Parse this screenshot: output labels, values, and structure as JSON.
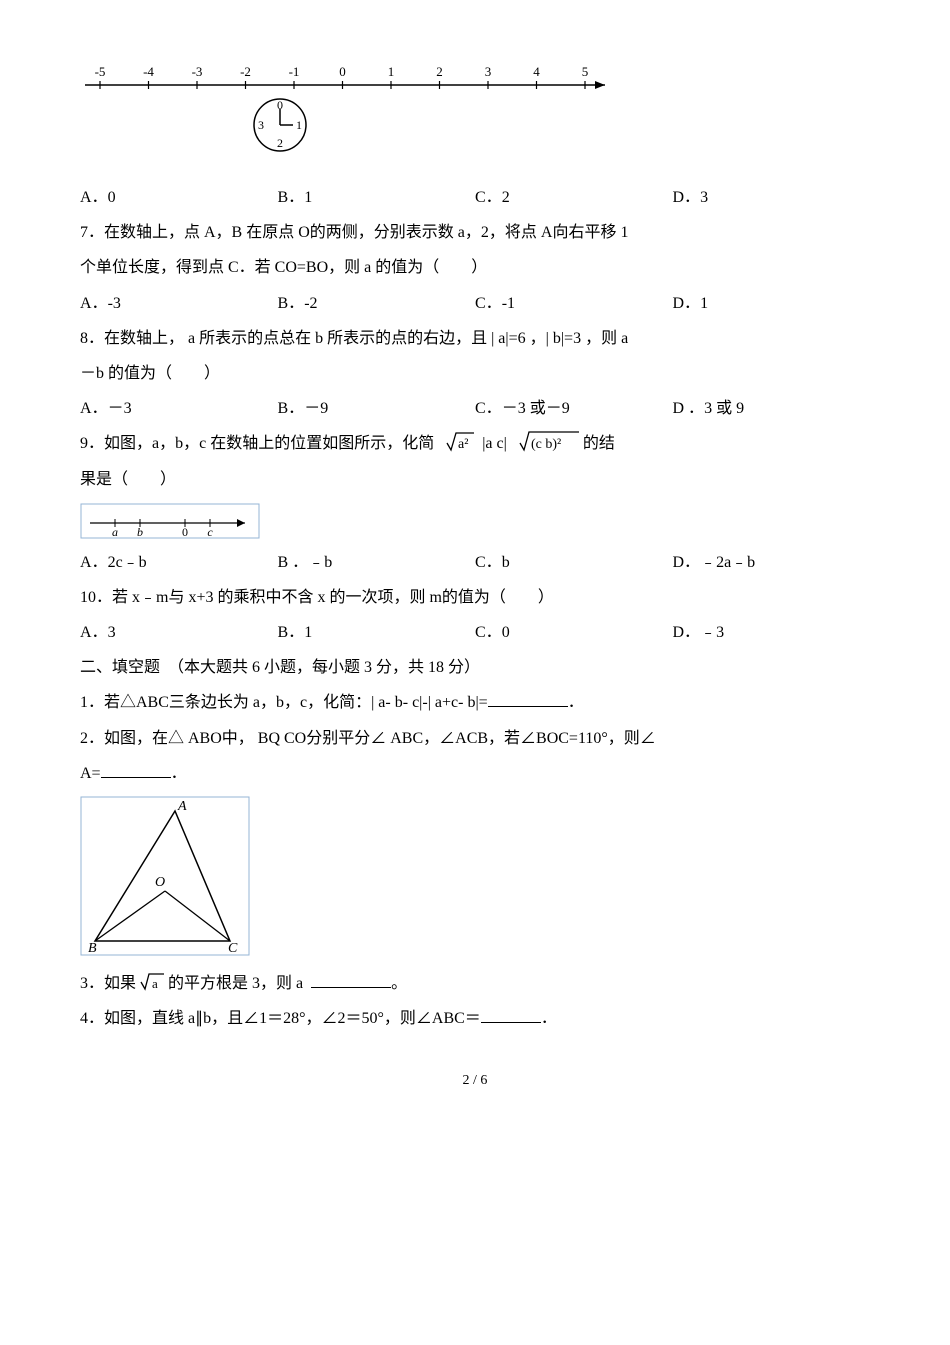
{
  "numberLine": {
    "ticks": [
      -5,
      -4,
      -3,
      -2,
      -1,
      0,
      1,
      2,
      3,
      4,
      5
    ],
    "tick_fontsize": 13,
    "axis_color": "#000000",
    "arrow": true
  },
  "clock": {
    "numbers_visible": [
      "0",
      "1",
      "2",
      "3"
    ],
    "stroke": "#000000"
  },
  "q6_options": {
    "a_label": "A．",
    "a_val": "0",
    "b_label": "B．",
    "b_val": "1",
    "c_label": "C．",
    "c_val": "2",
    "d_label": "D．",
    "d_val": "3"
  },
  "q7": {
    "text1": "7．在数轴上，点  A，B 在原点  O的两侧，分别表示数   a，2，将点  A向右平移  1",
    "text2": "个单位长度，得到点   C．若 CO=BO，则 a 的值为（　　）",
    "opts": {
      "a_label": "A．",
      "a_val": "-3",
      "b_label": "B．",
      "b_val": "-2",
      "c_label": "C．",
      "c_val": "-1",
      "d_label": "D．",
      "d_val": "1"
    }
  },
  "q8": {
    "text1": "8．在数轴上，  a 所表示的点总在  b 所表示的点的右边，且  | a|=6 ，| b|=3 ，则 a",
    "text2": "－b 的值为（　　）",
    "opts": {
      "a_label": "A．",
      "a_val": "－3",
      "b_label": "B．",
      "b_val": "－9",
      "c_label": "C．",
      "c_val": "－3 或－9",
      "d_label": "D  ．",
      "d_val": "3 或 9"
    }
  },
  "q9": {
    "text1": "9．如图，a，b，c 在数轴上的位置如图所示，化简",
    "expr_sqrt1": "a²",
    "expr_mid": "|a  c|",
    "expr_sqrt2": "(c  b)²",
    "text_end": "的结",
    "text2": "果是（　　）",
    "mini_axis_labels": [
      "a",
      "b",
      "0",
      "c"
    ],
    "opts": {
      "a_label": "A．",
      "a_val": "2c﹣b",
      "b_label": "B ．",
      "b_val": "﹣b",
      "c_label": "C．",
      "c_val": "b",
      "d_label": "D．",
      "d_val": "﹣2a﹣b"
    }
  },
  "q10": {
    "text": "10．若 x﹣m与 x+3 的乘积中不含  x 的一次项，则  m的值为（　　）",
    "opts": {
      "a_label": "A．",
      "a_val": "3",
      "b_label": "B．",
      "b_val": "1",
      "c_label": "C．",
      "c_val": "0",
      "d_label": "D．",
      "d_val": "﹣3"
    }
  },
  "section2_title": "二、填空题　（本大题共  6 小题，每小题  3 分，共  18 分）",
  "f1": {
    "text_before": "1．若△ABC三条边长为  a，b，c，化简：| a- b- c|-|  a+c- b|=",
    "text_after": "．"
  },
  "f2": {
    "text1": "2．如图，在△ ABO中， BQ  CO分别平分∠ ABC，∠ACB，若∠BOC=110°，则∠",
    "text2_before": "A=",
    "text2_after": "．",
    "triangle_labels": {
      "A": "A",
      "B": "B",
      "C": "C",
      "O": "O"
    }
  },
  "f3": {
    "text_before": "3．如果",
    "sqrt_arg": "a",
    "text_mid": "的平方根是   3，则 a",
    "text_after": "。"
  },
  "f4": {
    "text_before": "4．如图，直线  a∥b，且∠1＝28°，∠2＝50°，则∠ABC＝",
    "text_after": "．"
  },
  "footer": "2 / 6"
}
